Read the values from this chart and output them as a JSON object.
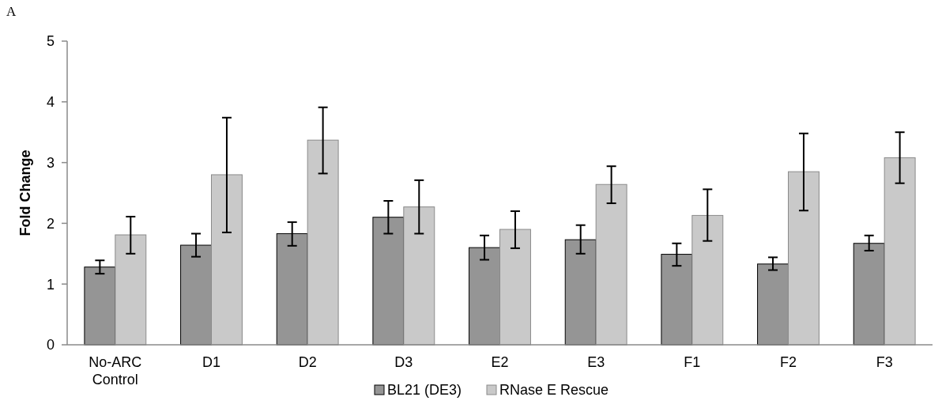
{
  "chart_data": {
    "type": "bar",
    "ylabel": "Fold Change",
    "annotations": [
      "A"
    ],
    "categories": [
      "No-ARC Control",
      "D1",
      "D2",
      "D3",
      "E2",
      "E3",
      "F1",
      "F2",
      "F3"
    ],
    "series": [
      {
        "name": "BL21 (DE3)",
        "color": "#959595",
        "values": [
          1.28,
          1.64,
          1.83,
          2.1,
          1.6,
          1.73,
          1.49,
          1.33,
          1.67
        ],
        "errors": [
          [
            1.17,
            1.39
          ],
          [
            1.45,
            1.83
          ],
          [
            1.63,
            2.02
          ],
          [
            1.83,
            2.37
          ],
          [
            1.4,
            1.8
          ],
          [
            1.5,
            1.97
          ],
          [
            1.3,
            1.67
          ],
          [
            1.23,
            1.44
          ],
          [
            1.55,
            1.8
          ]
        ]
      },
      {
        "name": "RNase E Rescue",
        "color": "#c9c9c9",
        "values": [
          1.81,
          2.8,
          3.37,
          2.27,
          1.9,
          2.64,
          2.13,
          2.85,
          3.08
        ],
        "errors": [
          [
            1.5,
            2.11
          ],
          [
            1.85,
            3.74
          ],
          [
            2.82,
            3.91
          ],
          [
            1.83,
            2.71
          ],
          [
            1.59,
            2.2
          ],
          [
            2.33,
            2.94
          ],
          [
            1.71,
            2.56
          ],
          [
            2.21,
            3.48
          ],
          [
            2.66,
            3.5
          ]
        ]
      }
    ],
    "ylim": [
      0,
      5
    ],
    "yticks": [
      0,
      1,
      2,
      3,
      4,
      5
    ],
    "grid": false,
    "legend": "bottom"
  }
}
